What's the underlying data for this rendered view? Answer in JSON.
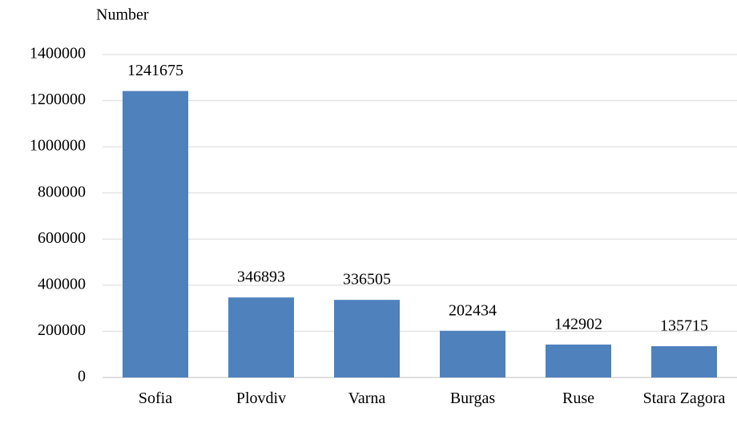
{
  "chart_data": {
    "type": "bar",
    "y_label": "Number",
    "categories": [
      "Sofia",
      "Plovdiv",
      "Varna",
      "Burgas",
      "Ruse",
      "Stara Zagora"
    ],
    "values": [
      1241675,
      346893,
      336505,
      202434,
      142902,
      135715
    ],
    "color": "#4f81bd",
    "ylim": [
      0,
      1400000
    ],
    "yticks": [
      0,
      200000,
      400000,
      600000,
      800000,
      1000000,
      1200000,
      1400000
    ],
    "grid": true
  }
}
